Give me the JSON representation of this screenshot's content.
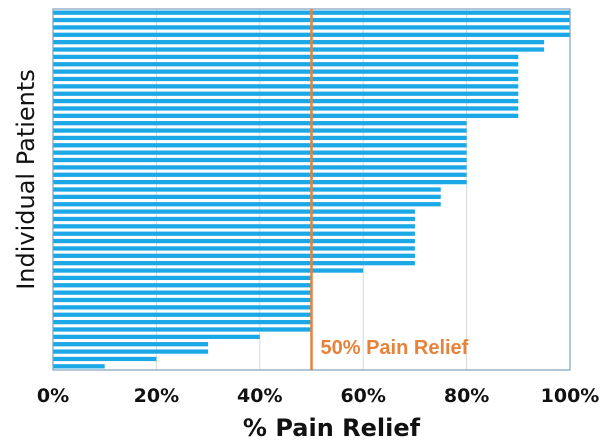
{
  "chart_data": {
    "type": "bar",
    "orientation": "horizontal",
    "xlabel": "% Pain Relief",
    "ylabel": "Individual Patients",
    "xlim": [
      0,
      100
    ],
    "x_ticks": [
      "0%",
      "20%",
      "40%",
      "60%",
      "80%",
      "100%"
    ],
    "grid": true,
    "values": [
      100,
      100,
      100,
      100,
      95,
      95,
      90,
      90,
      90,
      90,
      90,
      90,
      90,
      90,
      90,
      80,
      80,
      80,
      80,
      80,
      80,
      80,
      80,
      80,
      75,
      75,
      75,
      70,
      70,
      70,
      70,
      70,
      70,
      70,
      70,
      60,
      50,
      50,
      50,
      50,
      50,
      50,
      50,
      50,
      40,
      30,
      30,
      20,
      10
    ],
    "reference_line": {
      "x": 50,
      "label": "50% Pain Relief"
    },
    "colors": {
      "bar": "#1aa8e6",
      "reference": "#e8823a",
      "grid": "#d9d9d9",
      "frame": "#7f9fbf"
    }
  }
}
